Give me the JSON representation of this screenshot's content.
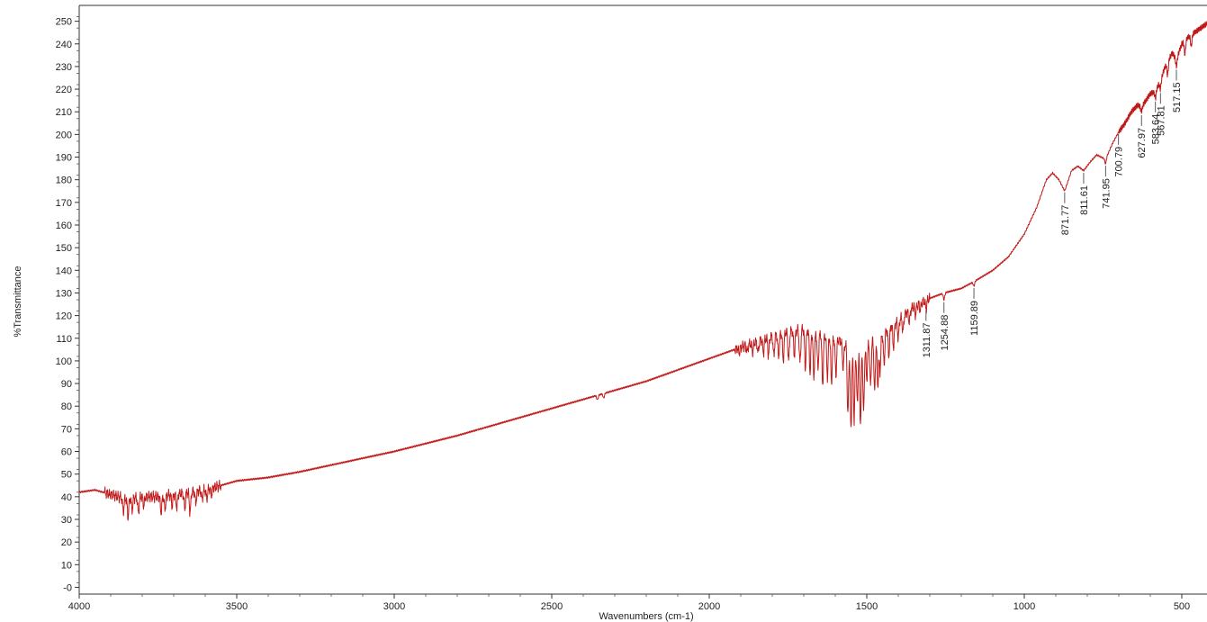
{
  "chart_data": {
    "type": "line",
    "title": "",
    "xlabel": "Wavenumbers (cm-1)",
    "ylabel": "%Transmittance",
    "xlim": [
      4000,
      420
    ],
    "ylim": [
      -3,
      257
    ],
    "x_reversed": true,
    "grid": false,
    "line_color": "#c01818",
    "x_ticks": [
      4000,
      3500,
      3000,
      2500,
      2000,
      1500,
      1000,
      500
    ],
    "x_tick_labels": [
      "4000",
      "3500",
      "3000",
      "2500",
      "2000",
      "1500",
      "1000",
      "500"
    ],
    "y_ticks": [
      0,
      10,
      20,
      30,
      40,
      50,
      60,
      70,
      80,
      90,
      100,
      110,
      120,
      130,
      140,
      150,
      160,
      170,
      180,
      190,
      200,
      210,
      220,
      230,
      240,
      250
    ],
    "y_tick_labels": [
      "-0",
      "10",
      "20",
      "30",
      "40",
      "50",
      "60",
      "70",
      "80",
      "90",
      "100",
      "110",
      "120",
      "130",
      "140",
      "150",
      "160",
      "170",
      "180",
      "190",
      "200",
      "210",
      "220",
      "230",
      "240",
      "250"
    ],
    "baseline": [
      [
        4000,
        42
      ],
      [
        3950,
        43
      ],
      [
        3900,
        41
      ],
      [
        3850,
        39
      ],
      [
        3800,
        40
      ],
      [
        3750,
        40
      ],
      [
        3700,
        41
      ],
      [
        3650,
        42
      ],
      [
        3600,
        43
      ],
      [
        3550,
        45
      ],
      [
        3500,
        47
      ],
      [
        3400,
        48.5
      ],
      [
        3300,
        51
      ],
      [
        3200,
        54
      ],
      [
        3100,
        57
      ],
      [
        3000,
        60
      ],
      [
        2900,
        63.5
      ],
      [
        2800,
        67
      ],
      [
        2700,
        71
      ],
      [
        2600,
        75
      ],
      [
        2500,
        79
      ],
      [
        2400,
        83
      ],
      [
        2350,
        85
      ],
      [
        2300,
        87
      ],
      [
        2200,
        91
      ],
      [
        2100,
        96
      ],
      [
        2000,
        101
      ],
      [
        1900,
        106
      ],
      [
        1800,
        111
      ],
      [
        1750,
        113
      ],
      [
        1700,
        114
      ],
      [
        1650,
        112
      ],
      [
        1600,
        110
      ],
      [
        1550,
        106
      ],
      [
        1500,
        108
      ],
      [
        1450,
        112
      ],
      [
        1400,
        118
      ],
      [
        1350,
        124
      ],
      [
        1311.87,
        127
      ],
      [
        1254.88,
        130
      ],
      [
        1200,
        132
      ],
      [
        1159.89,
        135
      ],
      [
        1100,
        140
      ],
      [
        1050,
        146
      ],
      [
        1000,
        156
      ],
      [
        960,
        168
      ],
      [
        930,
        180
      ],
      [
        910,
        183
      ],
      [
        890,
        180
      ],
      [
        871.77,
        175
      ],
      [
        850,
        184
      ],
      [
        830,
        186
      ],
      [
        811.61,
        184
      ],
      [
        790,
        188
      ],
      [
        770,
        191
      ],
      [
        741.95,
        189
      ],
      [
        720,
        196
      ],
      [
        700.79,
        201
      ],
      [
        680,
        205
      ],
      [
        660,
        210
      ],
      [
        640,
        213
      ],
      [
        627.97,
        212
      ],
      [
        600,
        218
      ],
      [
        583.64,
        219
      ],
      [
        567.81,
        224
      ],
      [
        550,
        231
      ],
      [
        530,
        236
      ],
      [
        517.15,
        233
      ],
      [
        500,
        240
      ],
      [
        480,
        243
      ],
      [
        460,
        245
      ],
      [
        440,
        247
      ],
      [
        420,
        249
      ]
    ],
    "dips": [
      [
        3860,
        6
      ],
      [
        3845,
        8
      ],
      [
        3832,
        5
      ],
      [
        3812,
        7
      ],
      [
        3795,
        4
      ],
      [
        3740,
        7
      ],
      [
        3728,
        6
      ],
      [
        3705,
        5
      ],
      [
        3690,
        6
      ],
      [
        3665,
        7
      ],
      [
        3648,
        9
      ],
      [
        3630,
        5
      ],
      [
        3610,
        4
      ],
      [
        3595,
        4
      ],
      [
        3580,
        3
      ],
      [
        2355,
        2
      ],
      [
        2335,
        2
      ],
      [
        1905,
        2
      ],
      [
        1880,
        3
      ],
      [
        1862,
        4
      ],
      [
        1845,
        5
      ],
      [
        1828,
        6
      ],
      [
        1812,
        8
      ],
      [
        1795,
        9
      ],
      [
        1780,
        10
      ],
      [
        1765,
        12
      ],
      [
        1748,
        13
      ],
      [
        1730,
        11
      ],
      [
        1712,
        15
      ],
      [
        1695,
        17
      ],
      [
        1680,
        18
      ],
      [
        1668,
        20
      ],
      [
        1655,
        16
      ],
      [
        1640,
        22
      ],
      [
        1625,
        18
      ],
      [
        1612,
        20
      ],
      [
        1598,
        16
      ],
      [
        1575,
        11
      ],
      [
        1560,
        30
      ],
      [
        1550,
        36
      ],
      [
        1540,
        33
      ],
      [
        1530,
        26
      ],
      [
        1520,
        34
      ],
      [
        1510,
        30
      ],
      [
        1500,
        16
      ],
      [
        1488,
        20
      ],
      [
        1475,
        24
      ],
      [
        1465,
        22
      ],
      [
        1458,
        16
      ],
      [
        1445,
        14
      ],
      [
        1430,
        12
      ],
      [
        1415,
        10
      ],
      [
        1400,
        8
      ],
      [
        1385,
        7
      ],
      [
        1365,
        5
      ],
      [
        1345,
        4
      ],
      [
        1330,
        3
      ],
      [
        1311.87,
        4
      ],
      [
        1254.88,
        3
      ],
      [
        1159.89,
        2
      ],
      [
        741.95,
        2
      ],
      [
        627.97,
        2
      ],
      [
        583.64,
        3
      ],
      [
        567.81,
        4
      ],
      [
        545,
        6
      ],
      [
        517.15,
        3
      ],
      [
        490,
        6
      ],
      [
        470,
        5
      ]
    ],
    "peak_labels": [
      "1311.87",
      "1254.88",
      "1159.89",
      "871.77",
      "811.61",
      "741.95",
      "700.79",
      "627.97",
      "583.64",
      "567.81",
      "517.15"
    ],
    "peak_positions": [
      1311.87,
      1254.88,
      1159.89,
      871.77,
      811.61,
      741.95,
      700.79,
      627.97,
      583.64,
      567.81,
      517.15
    ]
  }
}
